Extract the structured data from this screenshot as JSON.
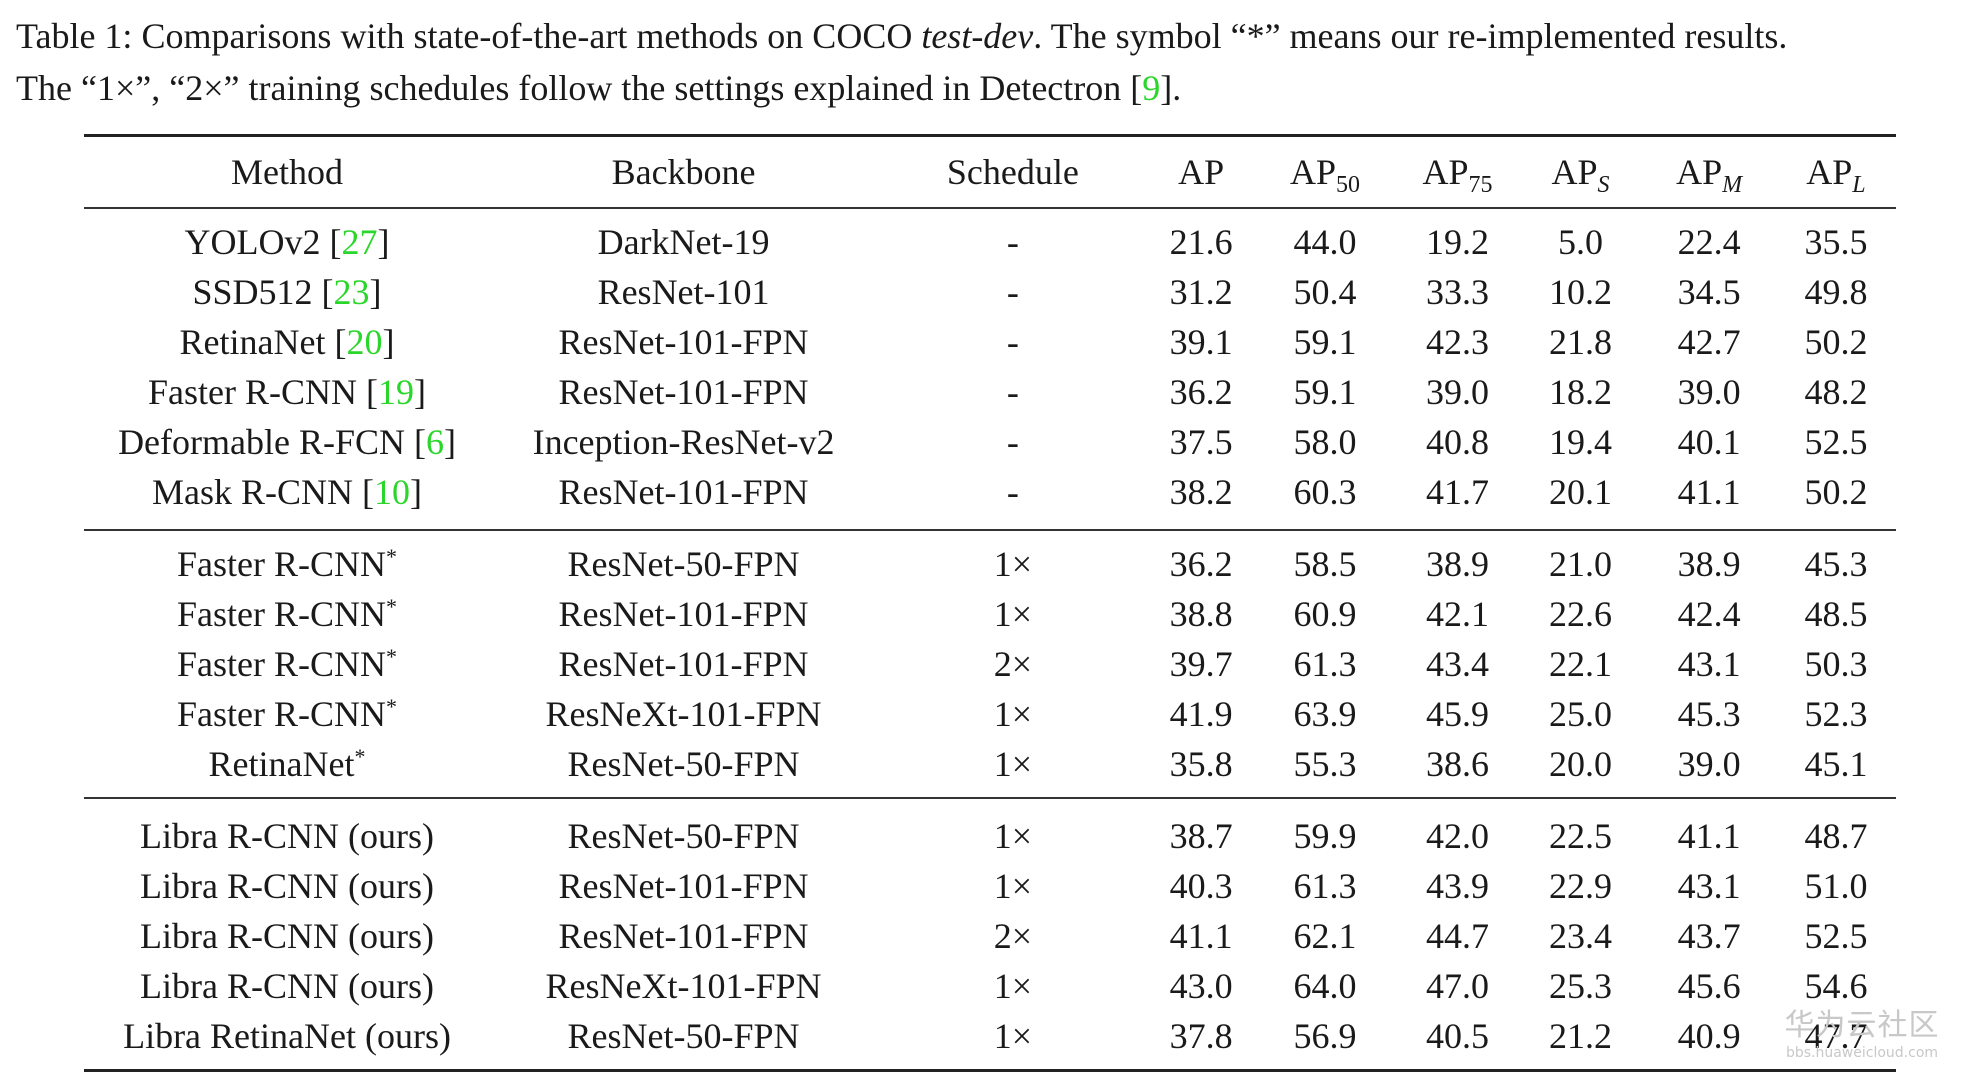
{
  "caption": {
    "part1": "Table 1: Comparisons with state-of-the-art methods on COCO ",
    "italic": "test-dev",
    "part2": ". The symbol “*” means our re-implemented results.",
    "line2_part1": "The “1×”, “2×” training schedules follow the settings explained in Detectron [",
    "line2_cite": "9",
    "line2_part2": "]."
  },
  "headers": {
    "method": "Method",
    "backbone": "Backbone",
    "schedule": "Schedule",
    "ap": "AP",
    "ap_base": "AP",
    "ap50_sub": "50",
    "ap75_sub": "75",
    "aps_sub": "S",
    "apm_sub": "M",
    "apl_sub": "L"
  },
  "groups": [
    {
      "rows": [
        {
          "name": "YOLOv2 [",
          "cite": "27",
          "suffix": "]",
          "backbone": "DarkNet-19",
          "schedule": "-",
          "ap": "21.6",
          "ap50": "44.0",
          "ap75": "19.2",
          "aps": "5.0",
          "apm": "22.4",
          "apl": "35.5"
        },
        {
          "name": "SSD512 [",
          "cite": "23",
          "suffix": "]",
          "backbone": "ResNet-101",
          "schedule": "-",
          "ap": "31.2",
          "ap50": "50.4",
          "ap75": "33.3",
          "aps": "10.2",
          "apm": "34.5",
          "apl": "49.8"
        },
        {
          "name": "RetinaNet [",
          "cite": "20",
          "suffix": "]",
          "backbone": "ResNet-101-FPN",
          "schedule": "-",
          "ap": "39.1",
          "ap50": "59.1",
          "ap75": "42.3",
          "aps": "21.8",
          "apm": "42.7",
          "apl": "50.2"
        },
        {
          "name": "Faster R-CNN [",
          "cite": "19",
          "suffix": "]",
          "backbone": "ResNet-101-FPN",
          "schedule": "-",
          "ap": "36.2",
          "ap50": "59.1",
          "ap75": "39.0",
          "aps": "18.2",
          "apm": "39.0",
          "apl": "48.2"
        },
        {
          "name": "Deformable R-FCN [",
          "cite": "6",
          "suffix": "]",
          "backbone": "Inception-ResNet-v2",
          "schedule": "-",
          "ap": "37.5",
          "ap50": "58.0",
          "ap75": "40.8",
          "aps": "19.4",
          "apm": "40.1",
          "apl": "52.5"
        },
        {
          "name": "Mask R-CNN [",
          "cite": "10",
          "suffix": "]",
          "backbone": "ResNet-101-FPN",
          "schedule": "-",
          "ap": "38.2",
          "ap50": "60.3",
          "ap75": "41.7",
          "aps": "20.1",
          "apm": "41.1",
          "apl": "50.2"
        }
      ]
    },
    {
      "rows": [
        {
          "name": "Faster R-CNN",
          "star": "*",
          "backbone": "ResNet-50-FPN",
          "schedule": "1×",
          "ap": "36.2",
          "ap50": "58.5",
          "ap75": "38.9",
          "aps": "21.0",
          "apm": "38.9",
          "apl": "45.3"
        },
        {
          "name": "Faster R-CNN",
          "star": "*",
          "backbone": "ResNet-101-FPN",
          "schedule": "1×",
          "ap": "38.8",
          "ap50": "60.9",
          "ap75": "42.1",
          "aps": "22.6",
          "apm": "42.4",
          "apl": "48.5"
        },
        {
          "name": "Faster R-CNN",
          "star": "*",
          "backbone": "ResNet-101-FPN",
          "schedule": "2×",
          "ap": "39.7",
          "ap50": "61.3",
          "ap75": "43.4",
          "aps": "22.1",
          "apm": "43.1",
          "apl": "50.3"
        },
        {
          "name": "Faster R-CNN",
          "star": "*",
          "backbone": "ResNeXt-101-FPN",
          "schedule": "1×",
          "ap": "41.9",
          "ap50": "63.9",
          "ap75": "45.9",
          "aps": "25.0",
          "apm": "45.3",
          "apl": "52.3"
        },
        {
          "name": "RetinaNet",
          "star": "*",
          "backbone": "ResNet-50-FPN",
          "schedule": "1×",
          "ap": "35.8",
          "ap50": "55.3",
          "ap75": "38.6",
          "aps": "20.0",
          "apm": "39.0",
          "apl": "45.1"
        }
      ]
    },
    {
      "rows": [
        {
          "name": "Libra R-CNN (ours)",
          "backbone": "ResNet-50-FPN",
          "schedule": "1×",
          "ap": "38.7",
          "ap50": "59.9",
          "ap75": "42.0",
          "aps": "22.5",
          "apm": "41.1",
          "apl": "48.7"
        },
        {
          "name": "Libra R-CNN (ours)",
          "backbone": "ResNet-101-FPN",
          "schedule": "1×",
          "ap": "40.3",
          "ap50": "61.3",
          "ap75": "43.9",
          "aps": "22.9",
          "apm": "43.1",
          "apl": "51.0"
        },
        {
          "name": "Libra R-CNN (ours)",
          "backbone": "ResNet-101-FPN",
          "schedule": "2×",
          "ap": "41.1",
          "ap50": "62.1",
          "ap75": "44.7",
          "aps": "23.4",
          "apm": "43.7",
          "apl": "52.5"
        },
        {
          "name": "Libra R-CNN (ours)",
          "backbone": "ResNeXt-101-FPN",
          "schedule": "1×",
          "ap": "43.0",
          "ap50": "64.0",
          "ap75": "47.0",
          "aps": "25.3",
          "apm": "45.6",
          "apl": "54.6"
        },
        {
          "name": "Libra RetinaNet (ours)",
          "backbone": "ResNet-50-FPN",
          "schedule": "1×",
          "ap": "37.8",
          "ap50": "56.9",
          "ap75": "40.5",
          "aps": "21.2",
          "apm": "40.9",
          "apl": "47.7"
        }
      ]
    }
  ],
  "watermark": {
    "main": "华为云社区",
    "sub": "bbs.huaweicloud.com"
  }
}
